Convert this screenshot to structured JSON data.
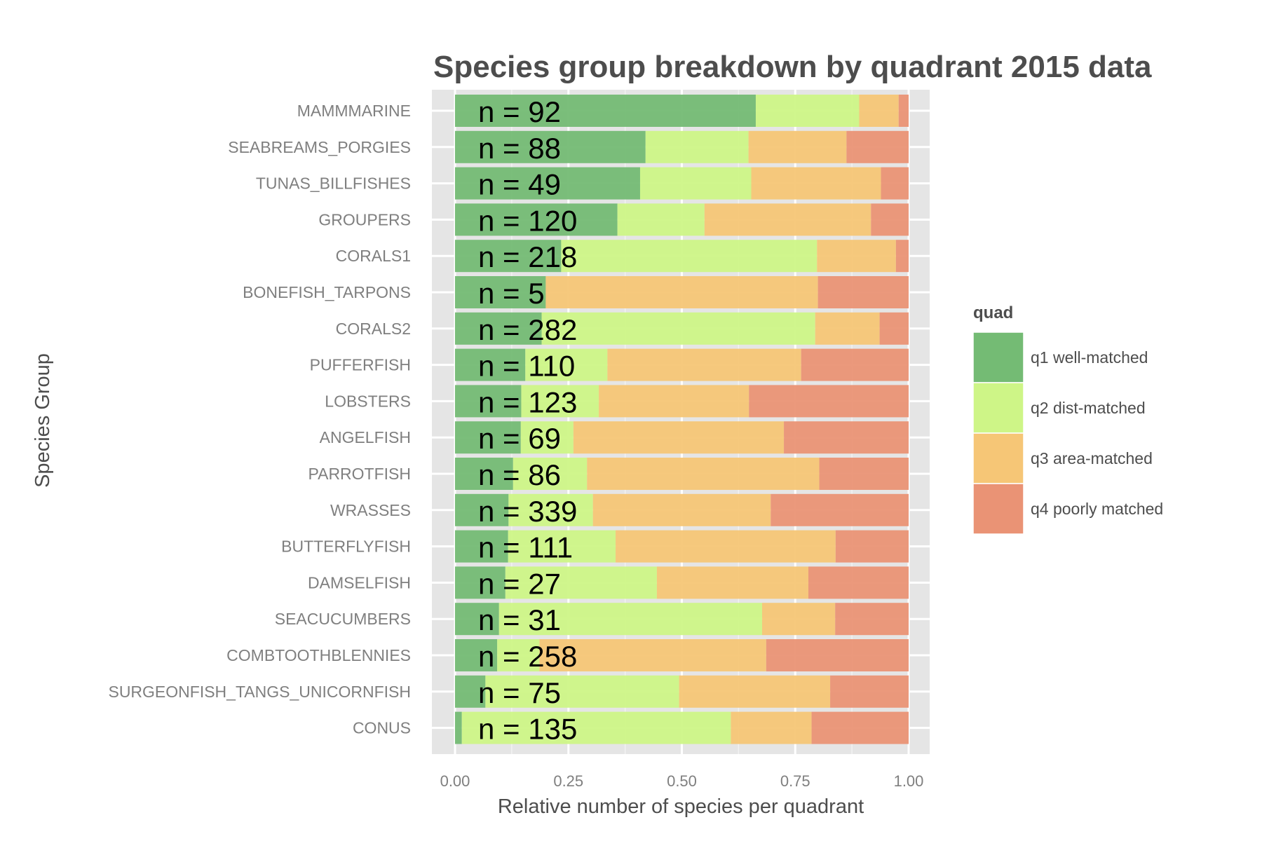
{
  "chart_data": {
    "type": "bar",
    "orientation": "horizontal",
    "stacked": true,
    "title": "Species group breakdown by quadrant 2015 data",
    "xlabel": "Relative number of species per quadrant",
    "ylabel": "Species Group",
    "xlim": [
      0,
      1
    ],
    "xticks": [
      "0.00",
      "0.25",
      "0.50",
      "0.75",
      "1.00"
    ],
    "grid": true,
    "legend": {
      "title": "quad",
      "position": "right"
    },
    "categories": [
      "MAMMMARINE",
      "SEABREAMS_PORGIES",
      "TUNAS_BILLFISHES",
      "GROUPERS",
      "CORALS1",
      "BONEFISH_TARPONS",
      "CORALS2",
      "PUFFERFISH",
      "LOBSTERS",
      "ANGELFISH",
      "PARROTFISH",
      "WRASSES",
      "BUTTERFLYFISH",
      "DAMSELFISH",
      "SEACUCUMBERS",
      "COMBTOOTHBLENNIES",
      "SURGEONFISH_TANGS_UNICORNFISH",
      "CONUS"
    ],
    "annotations": [
      "n = 92",
      "n = 88",
      "n = 49",
      "n = 120",
      "n = 218",
      "n = 5",
      "n = 282",
      "n = 110",
      "n = 123",
      "n = 69",
      "n = 86",
      "n = 339",
      "n = 111",
      "n = 27",
      "n = 31",
      "n = 258",
      "n = 75",
      "n = 135"
    ],
    "series": [
      {
        "name": "q1 well-matched",
        "color": "#74bb74",
        "values": [
          0.663,
          0.42,
          0.408,
          0.358,
          0.234,
          0.2,
          0.191,
          0.155,
          0.146,
          0.145,
          0.128,
          0.118,
          0.117,
          0.111,
          0.097,
          0.093,
          0.067,
          0.015
        ]
      },
      {
        "name": "q2 dist-matched",
        "color": "#cef587",
        "values": [
          0.228,
          0.227,
          0.245,
          0.192,
          0.564,
          0.0,
          0.603,
          0.181,
          0.171,
          0.116,
          0.163,
          0.186,
          0.237,
          0.334,
          0.58,
          0.093,
          0.427,
          0.593
        ]
      },
      {
        "name": "q3 area-matched",
        "color": "#f6c676",
        "values": [
          0.087,
          0.216,
          0.286,
          0.367,
          0.174,
          0.6,
          0.142,
          0.427,
          0.331,
          0.464,
          0.512,
          0.392,
          0.485,
          0.334,
          0.161,
          0.5,
          0.333,
          0.178
        ]
      },
      {
        "name": "q4 poorly matched",
        "color": "#ea9375",
        "values": [
          0.022,
          0.137,
          0.061,
          0.083,
          0.028,
          0.2,
          0.064,
          0.237,
          0.352,
          0.275,
          0.197,
          0.304,
          0.161,
          0.221,
          0.162,
          0.314,
          0.173,
          0.214
        ]
      }
    ]
  }
}
